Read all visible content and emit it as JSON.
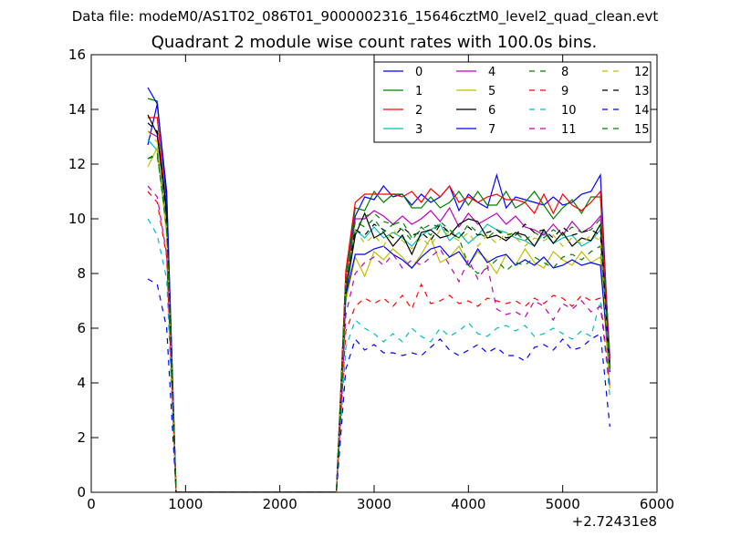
{
  "suptitle": "Data file: modeM0/AS1T02_086T01_9000002316_15646cztM0_level2_quad_clean.evt",
  "chart_data": {
    "type": "line",
    "title": "Quadrant 2 module wise count rates with 100.0s bins.",
    "xlabel": "",
    "ylabel": "",
    "xlim": [
      0,
      6000
    ],
    "ylim": [
      0,
      16
    ],
    "x_offset_label": "+2.72431e8",
    "x_ticks": [
      0,
      1000,
      2000,
      3000,
      4000,
      5000,
      6000
    ],
    "x_tick_labels": [
      "0",
      "1000",
      "2000",
      "3000",
      "4000",
      "5000",
      "6000"
    ],
    "y_ticks": [
      0,
      2,
      4,
      6,
      8,
      10,
      12,
      14,
      16
    ],
    "y_tick_labels": [
      "0",
      "2",
      "4",
      "6",
      "8",
      "10",
      "12",
      "14",
      "16"
    ],
    "grid": false,
    "legend": {
      "position": "top-right",
      "columns": 4
    },
    "x": [
      600,
      700,
      800,
      900,
      1000,
      1100,
      1200,
      1300,
      1400,
      1500,
      1600,
      1700,
      1800,
      1900,
      2000,
      2100,
      2200,
      2300,
      2400,
      2500,
      2600,
      2700,
      2800,
      2900,
      3000,
      3100,
      3200,
      3300,
      3400,
      3500,
      3600,
      3700,
      3800,
      3900,
      4000,
      4100,
      4200,
      4300,
      4400,
      4500,
      4600,
      4700,
      4800,
      4900,
      5000,
      5100,
      5200,
      5300,
      5400,
      5500
    ],
    "series": [
      {
        "name": "0",
        "color": "#0000ff",
        "dash": "solid",
        "values": [
          12.7,
          14.2,
          11.0,
          0,
          0,
          0,
          0,
          0,
          0,
          0,
          0,
          0,
          0,
          0,
          0,
          0,
          0,
          0,
          0,
          0,
          0,
          8.0,
          10.1,
          10.8,
          10.7,
          11.2,
          10.8,
          10.9,
          10.5,
          10.9,
          10.6,
          10.8,
          11.2,
          10.3,
          10.9,
          10.6,
          10.4,
          11.6,
          10.4,
          10.8,
          10.7,
          10.6,
          10.5,
          10.8,
          10.5,
          10.6,
          10.9,
          11.0,
          11.6,
          4.6
        ]
      },
      {
        "name": "1",
        "color": "#008000",
        "dash": "solid",
        "values": [
          14.4,
          14.3,
          10.6,
          0,
          0,
          0,
          0,
          0,
          0,
          0,
          0,
          0,
          0,
          0,
          0,
          0,
          0,
          0,
          0,
          0,
          0,
          7.9,
          10.4,
          10.3,
          11.0,
          10.6,
          10.9,
          10.9,
          10.4,
          10.4,
          10.8,
          10.4,
          10.6,
          11.0,
          10.5,
          11.0,
          10.5,
          10.5,
          11.0,
          10.4,
          10.6,
          11.0,
          10.5,
          10.0,
          10.4,
          10.7,
          10.2,
          10.8,
          10.8,
          5.0
        ]
      },
      {
        "name": "2",
        "color": "#ff0000",
        "dash": "solid",
        "values": [
          13.7,
          13.7,
          10.2,
          0,
          0,
          0,
          0,
          0,
          0,
          0,
          0,
          0,
          0,
          0,
          0,
          0,
          0,
          0,
          0,
          0,
          0,
          8.1,
          10.6,
          10.9,
          10.9,
          10.9,
          10.9,
          10.8,
          11.0,
          10.6,
          11.1,
          10.8,
          11.2,
          10.6,
          10.8,
          10.6,
          10.8,
          10.9,
          10.7,
          10.7,
          10.6,
          10.2,
          10.9,
          10.2,
          10.9,
          10.5,
          10.3,
          10.6,
          11.0,
          4.8
        ]
      },
      {
        "name": "3",
        "color": "#00bfbf",
        "dash": "solid",
        "values": [
          12.9,
          12.5,
          9.9,
          0,
          0,
          0,
          0,
          0,
          0,
          0,
          0,
          0,
          0,
          0,
          0,
          0,
          0,
          0,
          0,
          0,
          0,
          7.4,
          9.6,
          9.3,
          9.7,
          9.3,
          9.5,
          9.3,
          9.0,
          9.4,
          9.6,
          9.8,
          9.2,
          9.5,
          9.1,
          9.4,
          9.8,
          9.6,
          9.5,
          9.3,
          9.2,
          9.0,
          9.5,
          9.1,
          9.3,
          9.4,
          9.0,
          9.2,
          9.6,
          4.7
        ]
      },
      {
        "name": "4",
        "color": "#bf00bf",
        "dash": "solid",
        "values": [
          13.2,
          13.0,
          10.3,
          0,
          0,
          0,
          0,
          0,
          0,
          0,
          0,
          0,
          0,
          0,
          0,
          0,
          0,
          0,
          0,
          0,
          0,
          7.6,
          10.0,
          10.0,
          10.3,
          10.1,
          9.8,
          10.1,
          9.8,
          10.0,
          10.3,
          9.9,
          10.4,
          9.7,
          10.2,
          9.8,
          10.0,
          10.2,
          9.8,
          10.1,
          9.7,
          9.6,
          9.4,
          9.8,
          9.4,
          9.9,
          9.5,
          9.7,
          10.1,
          4.9
        ]
      },
      {
        "name": "5",
        "color": "#bfbf00",
        "dash": "solid",
        "values": [
          11.9,
          12.6,
          9.4,
          0,
          0,
          0,
          0,
          0,
          0,
          0,
          0,
          0,
          0,
          0,
          0,
          0,
          0,
          0,
          0,
          0,
          0,
          7.0,
          8.6,
          7.9,
          8.8,
          8.5,
          8.9,
          8.6,
          8.2,
          8.7,
          9.3,
          8.4,
          8.6,
          9.0,
          8.3,
          8.8,
          8.5,
          8.0,
          8.7,
          8.3,
          8.9,
          8.4,
          8.2,
          8.8,
          8.5,
          8.3,
          8.8,
          8.4,
          8.6,
          3.8
        ]
      },
      {
        "name": "6",
        "color": "#000000",
        "dash": "solid",
        "values": [
          13.8,
          13.1,
          10.3,
          0,
          0,
          0,
          0,
          0,
          0,
          0,
          0,
          0,
          0,
          0,
          0,
          0,
          0,
          0,
          0,
          0,
          0,
          7.3,
          9.4,
          10.2,
          9.3,
          9.5,
          9.0,
          9.4,
          8.7,
          9.5,
          9.6,
          9.3,
          9.4,
          9.8,
          10.0,
          9.9,
          9.3,
          9.4,
          9.2,
          9.5,
          9.4,
          9.0,
          9.6,
          9.1,
          9.5,
          9.0,
          9.3,
          9.2,
          9.8,
          4.5
        ]
      },
      {
        "name": "7",
        "color": "#0000ff",
        "dash": "solid",
        "values": [
          14.8,
          14.2,
          10.8,
          0,
          0,
          0,
          0,
          0,
          0,
          0,
          0,
          0,
          0,
          0,
          0,
          0,
          0,
          0,
          0,
          0,
          0,
          7.2,
          8.7,
          8.7,
          8.9,
          9.0,
          8.7,
          8.5,
          8.2,
          8.6,
          8.9,
          9.0,
          8.6,
          8.8,
          8.3,
          8.9,
          8.4,
          8.6,
          8.7,
          8.3,
          8.5,
          8.3,
          8.6,
          8.2,
          8.3,
          8.5,
          8.3,
          8.4,
          8.3,
          4.4
        ]
      },
      {
        "name": "8",
        "color": "#008000",
        "dash": "dashed",
        "values": [
          12.2,
          12.3,
          9.9,
          0,
          0,
          0,
          0,
          0,
          0,
          0,
          0,
          0,
          0,
          0,
          0,
          0,
          0,
          0,
          0,
          0,
          0,
          7.4,
          9.6,
          10.1,
          10.2,
          9.9,
          9.8,
          9.9,
          9.3,
          9.6,
          9.8,
          9.7,
          9.5,
          9.3,
          8.3,
          8.0,
          8.2,
          8.5,
          8.1,
          8.4,
          8.3,
          8.6,
          8.4,
          8.2,
          8.6,
          8.7,
          8.5,
          8.8,
          9.0,
          4.4
        ]
      },
      {
        "name": "9",
        "color": "#ff0000",
        "dash": "dashed",
        "values": [
          11.0,
          10.6,
          8.6,
          0,
          0,
          0,
          0,
          0,
          0,
          0,
          0,
          0,
          0,
          0,
          0,
          0,
          0,
          0,
          0,
          0,
          0,
          5.9,
          6.8,
          7.1,
          6.9,
          7.1,
          6.8,
          7.2,
          6.7,
          7.6,
          6.9,
          7.0,
          7.2,
          6.9,
          7.0,
          6.8,
          7.1,
          7.0,
          6.9,
          7.0,
          6.8,
          7.1,
          6.9,
          7.2,
          7.1,
          6.8,
          7.2,
          7.0,
          7.1,
          3.8
        ]
      },
      {
        "name": "10",
        "color": "#00bfbf",
        "dash": "dashed",
        "values": [
          10.0,
          9.4,
          7.8,
          0,
          0,
          0,
          0,
          0,
          0,
          0,
          0,
          0,
          0,
          0,
          0,
          0,
          0,
          0,
          0,
          0,
          0,
          5.3,
          6.3,
          6.0,
          5.8,
          5.5,
          5.8,
          5.5,
          6.0,
          5.7,
          5.5,
          6.0,
          5.7,
          5.9,
          6.2,
          5.8,
          5.7,
          6.0,
          6.1,
          5.9,
          6.1,
          5.7,
          5.8,
          6.0,
          5.8,
          5.6,
          5.9,
          5.7,
          7.0,
          3.5
        ]
      },
      {
        "name": "11",
        "color": "#bf00bf",
        "dash": "dashed",
        "values": [
          11.2,
          10.8,
          8.7,
          0,
          0,
          0,
          0,
          0,
          0,
          0,
          0,
          0,
          0,
          0,
          0,
          0,
          0,
          0,
          0,
          0,
          0,
          6.5,
          8.0,
          8.4,
          8.6,
          8.3,
          8.7,
          8.2,
          8.5,
          8.3,
          8.6,
          8.9,
          8.3,
          7.7,
          8.5,
          7.8,
          8.3,
          6.7,
          6.5,
          6.6,
          6.4,
          7.0,
          6.8,
          6.3,
          6.9,
          6.7,
          7.0,
          6.6,
          6.8,
          3.9
        ]
      },
      {
        "name": "12",
        "color": "#bfbf00",
        "dash": "dashed",
        "values": [
          13.2,
          12.8,
          9.6,
          0,
          0,
          0,
          0,
          0,
          0,
          0,
          0,
          0,
          0,
          0,
          0,
          0,
          0,
          0,
          0,
          0,
          0,
          7.8,
          9.6,
          9.1,
          9.4,
          9.0,
          9.6,
          9.2,
          8.9,
          9.3,
          9.0,
          9.6,
          9.4,
          9.2,
          9.5,
          9.0,
          9.4,
          9.1,
          9.5,
          9.3,
          9.0,
          9.3,
          9.2,
          9.4,
          9.0,
          9.3,
          9.1,
          9.4,
          9.2,
          4.3
        ]
      },
      {
        "name": "13",
        "color": "#000000",
        "dash": "dashed",
        "values": [
          13.5,
          13.2,
          10.0,
          0,
          0,
          0,
          0,
          0,
          0,
          0,
          0,
          0,
          0,
          0,
          0,
          0,
          0,
          0,
          0,
          0,
          0,
          7.7,
          9.6,
          9.4,
          9.8,
          9.6,
          9.3,
          9.7,
          9.4,
          9.5,
          9.2,
          9.8,
          9.5,
          9.3,
          9.7,
          9.4,
          9.5,
          9.6,
          9.3,
          9.4,
          9.8,
          9.5,
          9.6,
          9.3,
          9.7,
          9.4,
          9.5,
          9.6,
          9.4,
          4.6
        ]
      },
      {
        "name": "14",
        "color": "#0000ff",
        "dash": "dashed",
        "values": [
          7.8,
          7.6,
          6.0,
          0,
          0,
          0,
          0,
          0,
          0,
          0,
          0,
          0,
          0,
          0,
          0,
          0,
          0,
          0,
          0,
          0,
          0,
          4.5,
          5.6,
          5.2,
          5.4,
          5.1,
          5.1,
          5.0,
          5.1,
          5.0,
          5.3,
          5.6,
          5.2,
          5.0,
          5.2,
          5.4,
          5.1,
          5.3,
          5.0,
          5.0,
          4.8,
          5.3,
          5.4,
          5.2,
          5.6,
          5.2,
          5.3,
          5.6,
          5.8,
          2.4
        ]
      },
      {
        "name": "15",
        "color": "#008000",
        "dash": "dashed",
        "values": [
          12.2,
          12.4,
          9.6,
          0,
          0,
          0,
          0,
          0,
          0,
          0,
          0,
          0,
          0,
          0,
          0,
          0,
          0,
          0,
          0,
          0,
          0,
          7.6,
          9.9,
          9.7,
          10.0,
          9.5,
          9.8,
          9.6,
          9.2,
          9.7,
          9.4,
          9.9,
          9.6,
          9.3,
          9.8,
          9.5,
          9.3,
          9.6,
          9.4,
          9.5,
          9.2,
          9.5,
          9.3,
          9.6,
          9.4,
          9.7,
          9.5,
          9.6,
          10.0,
          4.5
        ]
      }
    ]
  }
}
